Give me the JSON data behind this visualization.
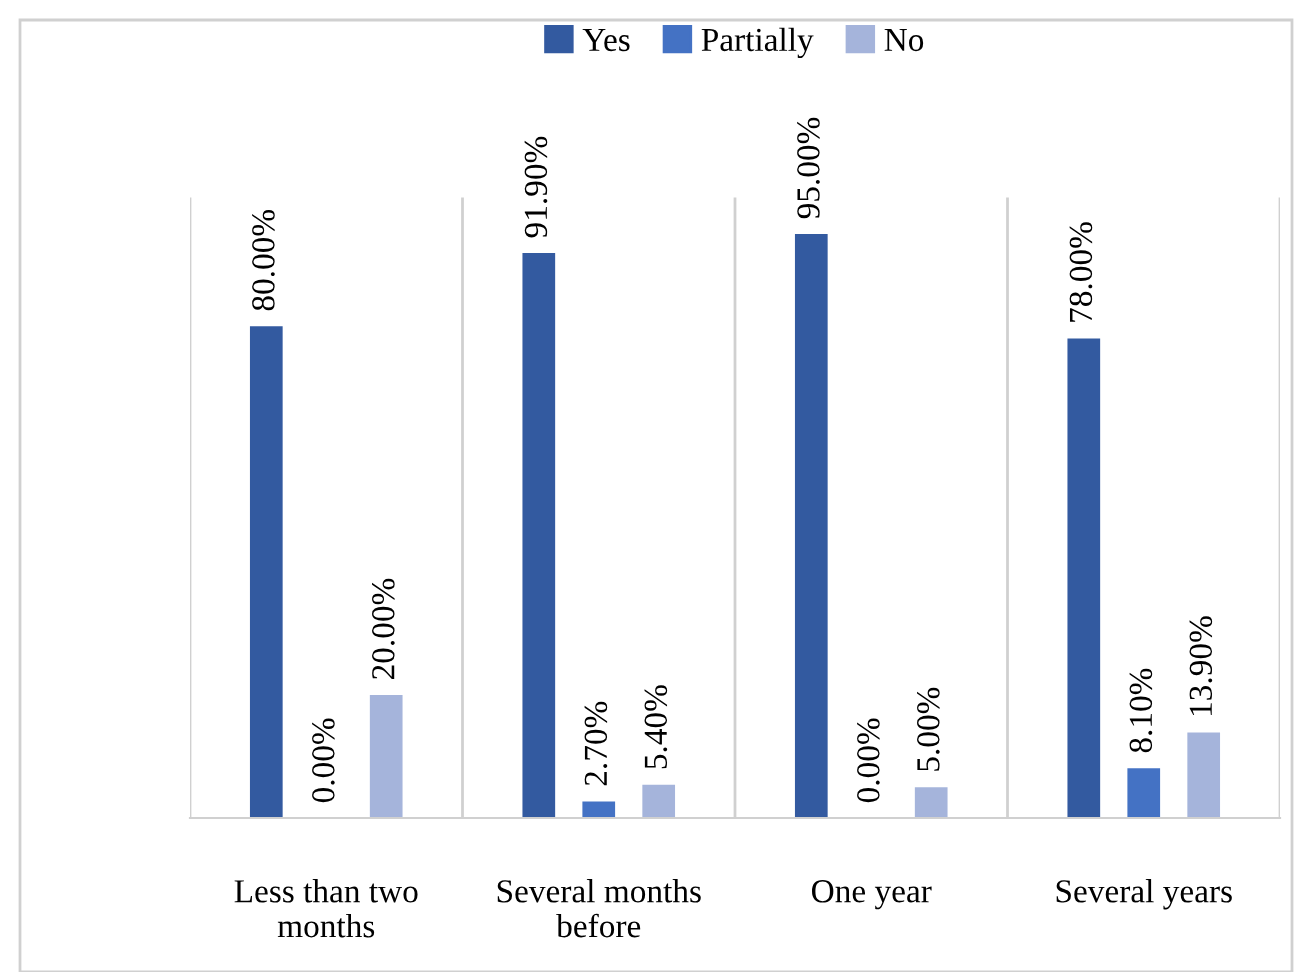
{
  "chart_data": {
    "type": "bar",
    "categories": [
      "Less than two\nmonths",
      "Several months\nbefore",
      "One year",
      "Several years"
    ],
    "series": [
      {
        "name": "Yes",
        "color": "#335aa0",
        "values": [
          80.0,
          91.9,
          95.0,
          78.0
        ],
        "value_labels": [
          "80.00%",
          "91.90%",
          "95.00%",
          "78.00%"
        ]
      },
      {
        "name": "Partially",
        "color": "#4472c4",
        "values": [
          0.0,
          2.7,
          0.0,
          8.1
        ],
        "value_labels": [
          "0.00%",
          "2.70%",
          "0.00%",
          "8.10%"
        ]
      },
      {
        "name": "No",
        "color": "#a5b4db",
        "values": [
          20.0,
          5.4,
          5.0,
          13.9
        ],
        "value_labels": [
          "20.00%",
          "5.40%",
          "5.00%",
          "13.90%"
        ]
      }
    ],
    "legend": "top",
    "grid": "x"
  }
}
